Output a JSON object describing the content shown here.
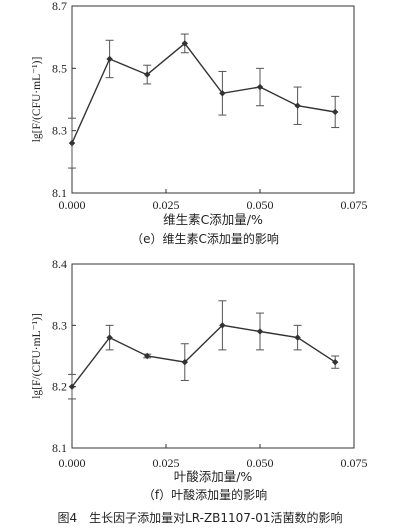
{
  "chart_data": [
    {
      "type": "line",
      "xlabel": "维生素C添加量/%",
      "ylabel": "lg[F/(CFU·mL⁻¹)]",
      "subcaption": "（e）维生素C添加量的影响",
      "xlim": [
        0,
        0.075
      ],
      "ylim": [
        8.1,
        8.7
      ],
      "xticks": [
        0.0,
        0.025,
        0.05,
        0.075
      ],
      "xtick_labels": [
        "0.000",
        "0.025",
        "0.050",
        "0.075"
      ],
      "yticks": [
        8.1,
        8.3,
        8.5,
        8.7
      ],
      "ytick_labels": [
        "8.1",
        "8.3",
        "8.5",
        "8.7"
      ],
      "x": [
        0.0,
        0.01,
        0.02,
        0.03,
        0.04,
        0.05,
        0.06,
        0.07
      ],
      "y": [
        8.26,
        8.53,
        8.48,
        8.58,
        8.42,
        8.44,
        8.38,
        8.36
      ],
      "err": [
        0.08,
        0.06,
        0.03,
        0.03,
        0.07,
        0.06,
        0.06,
        0.05
      ]
    },
    {
      "type": "line",
      "xlabel": "叶酸添加量/%",
      "ylabel": "lg[F/(CFU·mL⁻¹)]",
      "subcaption": "（f）叶酸添加量的影响",
      "xlim": [
        0,
        0.075
      ],
      "ylim": [
        8.1,
        8.4
      ],
      "xticks": [
        0.0,
        0.025,
        0.05,
        0.075
      ],
      "xtick_labels": [
        "0.000",
        "0.025",
        "0.050",
        "0.075"
      ],
      "yticks": [
        8.1,
        8.2,
        8.3,
        8.4
      ],
      "ytick_labels": [
        "8.1",
        "8.2",
        "8.3",
        "8.4"
      ],
      "x": [
        0.0,
        0.01,
        0.02,
        0.03,
        0.04,
        0.05,
        0.06,
        0.07
      ],
      "y": [
        8.2,
        8.28,
        8.25,
        8.24,
        8.3,
        8.29,
        8.28,
        8.24
      ],
      "err": [
        0.02,
        0.02,
        0.003,
        0.03,
        0.04,
        0.03,
        0.02,
        0.01
      ]
    }
  ],
  "figure_caption": "图4　生长因子添加量对LR-ZB1107-01活菌数的影响"
}
